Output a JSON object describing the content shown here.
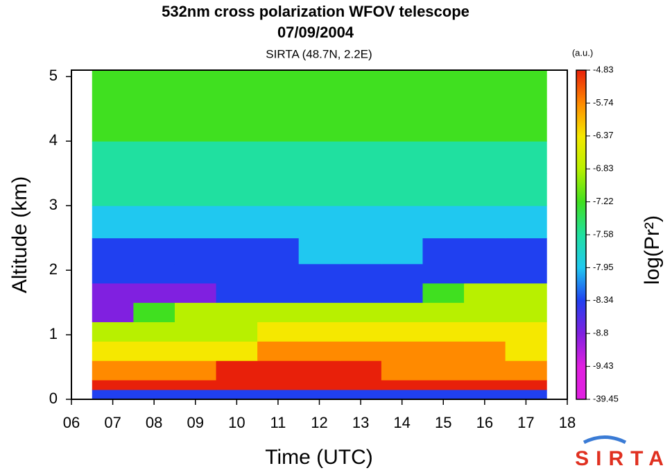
{
  "chart_data": {
    "type": "heatmap",
    "title": "532nm cross polarization WFOV telescope",
    "date": "07/09/2004",
    "subtitle": "SIRTA (48.7N, 2.2E)",
    "x_label": "Time (UTC)",
    "y_label": "Altitude (km)",
    "xlim": [
      6,
      18
    ],
    "ylim": [
      0,
      5.1
    ],
    "xticks": [
      {
        "value": 6,
        "label": "06"
      },
      {
        "value": 7,
        "label": "07"
      },
      {
        "value": 8,
        "label": "08"
      },
      {
        "value": 9,
        "label": "09"
      },
      10,
      11,
      12,
      13,
      14,
      15,
      16,
      17,
      18
    ],
    "yticks": [
      0,
      1,
      2,
      3,
      4,
      5
    ],
    "x_edges": [
      6.5,
      7.5,
      8.5,
      9.5,
      10.5,
      11.5,
      12.5,
      13.5,
      14.5,
      15.5,
      16.5,
      17.5
    ],
    "y_edges": [
      0,
      0.15,
      0.3,
      0.6,
      0.9,
      1.2,
      1.5,
      1.8,
      2.1,
      2.5,
      3,
      3.5,
      4,
      4.5,
      5.1
    ],
    "z": [
      [
        -8.5,
        -8.5,
        -8.5,
        -8.5,
        -8.5,
        -8.5,
        -8.5,
        -8.5,
        -8.5,
        -8.5,
        -8.5
      ],
      [
        -5.2,
        -5.2,
        -5.2,
        -5.2,
        -5.2,
        -5.2,
        -5.2,
        -5.2,
        -5.2,
        -5.2,
        -5.2
      ],
      [
        -6.0,
        -5.9,
        -5.8,
        -5.7,
        -5.5,
        -5.6,
        -5.7,
        -5.8,
        -5.9,
        -5.9,
        -6.0
      ],
      [
        -6.7,
        -6.6,
        -6.5,
        -6.4,
        -6.0,
        -6.1,
        -6.2,
        -6.3,
        -6.3,
        -6.2,
        -6.4
      ],
      [
        -6.9,
        -6.9,
        -6.9,
        -6.9,
        -6.8,
        -6.5,
        -6.5,
        -6.6,
        -6.6,
        -6.6,
        -6.7
      ],
      [
        -8.9,
        -7.3,
        -7.2,
        -7.2,
        -7.1,
        -7.0,
        -7.0,
        -7.0,
        -6.9,
        -6.9,
        -7.0
      ],
      [
        -9.0,
        -9.0,
        -8.9,
        -8.7,
        -8.6,
        -8.7,
        -8.6,
        -8.4,
        -7.3,
        -7.2,
        -7.2
      ],
      [
        -8.8,
        -8.8,
        -8.8,
        -8.7,
        -8.7,
        -8.6,
        -8.6,
        -8.5,
        -8.5,
        -8.4,
        -8.5
      ],
      [
        -8.5,
        -8.4,
        -8.4,
        -8.4,
        -8.4,
        -8.3,
        -8.3,
        -8.3,
        -8.4,
        -8.4,
        -8.4
      ],
      [
        -8.1,
        -8.1,
        -8.1,
        -8.1,
        -8.1,
        -8.1,
        -8.1,
        -8.1,
        -8.1,
        -8.1,
        -8.1
      ],
      [
        -7.9,
        -7.9,
        -7.9,
        -7.9,
        -7.9,
        -7.9,
        -7.9,
        -7.9,
        -7.9,
        -7.9,
        -7.9
      ],
      [
        -7.7,
        -7.7,
        -7.7,
        -7.7,
        -7.7,
        -7.7,
        -7.7,
        -7.7,
        -7.7,
        -7.7,
        -7.7
      ],
      [
        -7.5,
        -7.5,
        -7.5,
        -7.5,
        -7.5,
        -7.5,
        -7.5,
        -7.5,
        -7.5,
        -7.5,
        -7.5
      ],
      [
        -7.3,
        -7.3,
        -7.3,
        -7.3,
        -7.3,
        -7.3,
        -7.3,
        -7.3,
        -7.3,
        -7.3,
        -7.3
      ]
    ],
    "colorbar": {
      "label": "log(Pr²)",
      "unit": "(a.u.)",
      "ticks": [
        -4.83,
        -5.74,
        -6.37,
        -6.83,
        -7.22,
        -7.58,
        -7.95,
        -8.34,
        -8.8,
        -9.43,
        -39.45
      ],
      "colors": [
        "#e8200a",
        "#ff8a00",
        "#f5e800",
        "#b8f000",
        "#40e020",
        "#20e0a0",
        "#20c8f0",
        "#2040f0",
        "#8020e0",
        "#e020e0"
      ]
    },
    "logo": "SIRTA"
  }
}
